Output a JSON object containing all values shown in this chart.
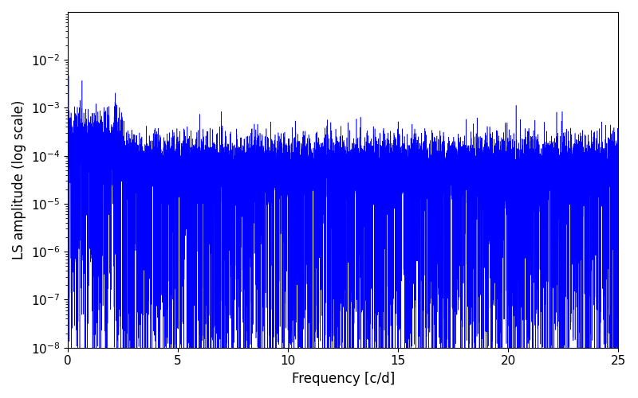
{
  "title": "",
  "xlabel": "Frequency [c/d]",
  "ylabel": "LS amplitude (log scale)",
  "xlim": [
    0,
    25
  ],
  "ylim": [
    1e-08,
    0.1
  ],
  "line_color": "#0000FF",
  "line_width": 0.4,
  "yscale": "log",
  "figsize": [
    8.0,
    5.0
  ],
  "dpi": 100,
  "seed": 12345,
  "n_points": 15000,
  "freq_max": 25.0,
  "base_amplitude": 5e-05,
  "power_law_index": 1.5,
  "noise_sigma": 0.8,
  "spike_prob": 0.12,
  "spike_min_depth": 1.5,
  "spike_max_depth": 4.5
}
